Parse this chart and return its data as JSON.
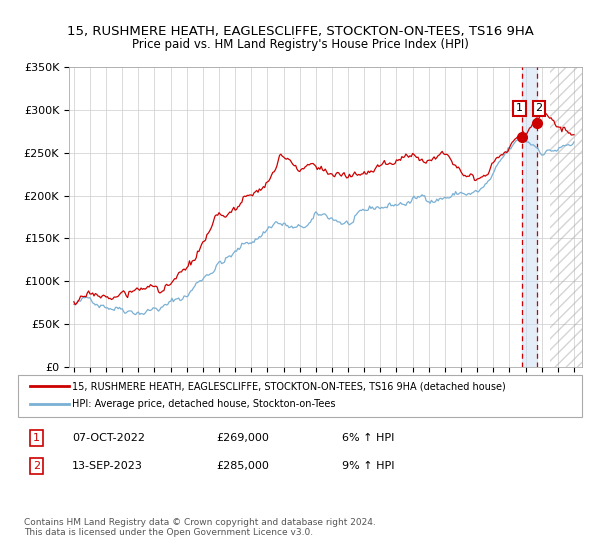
{
  "title": "15, RUSHMERE HEATH, EAGLESCLIFFE, STOCKTON-ON-TEES, TS16 9HA",
  "subtitle": "Price paid vs. HM Land Registry's House Price Index (HPI)",
  "legend_line1": "15, RUSHMERE HEATH, EAGLESCLIFFE, STOCKTON-ON-TEES, TS16 9HA (detached house)",
  "legend_line2": "HPI: Average price, detached house, Stockton-on-Tees",
  "red_color": "#cc0000",
  "blue_color": "#7ab0d4",
  "annotation1_date": "07-OCT-2022",
  "annotation1_price": "£269,000",
  "annotation1_hpi": "6% ↑ HPI",
  "annotation2_date": "13-SEP-2023",
  "annotation2_price": "£285,000",
  "annotation2_hpi": "9% ↑ HPI",
  "xmin": 1994.7,
  "xmax": 2026.5,
  "ymin": 0,
  "ymax": 350000,
  "yticks": [
    0,
    50000,
    100000,
    150000,
    200000,
    250000,
    300000,
    350000
  ],
  "ytick_labels": [
    "£0",
    "£50K",
    "£100K",
    "£150K",
    "£200K",
    "£250K",
    "£300K",
    "£350K"
  ],
  "xticks": [
    1995,
    1996,
    1997,
    1998,
    1999,
    2000,
    2001,
    2002,
    2003,
    2004,
    2005,
    2006,
    2007,
    2008,
    2009,
    2010,
    2011,
    2012,
    2013,
    2014,
    2015,
    2016,
    2017,
    2018,
    2019,
    2020,
    2021,
    2022,
    2023,
    2024,
    2025,
    2026
  ],
  "vline1_x": 2022.77,
  "vline2_x": 2023.71,
  "marker1_y": 269000,
  "marker2_y": 285000,
  "hatch_start": 2024.5,
  "footnote": "Contains HM Land Registry data © Crown copyright and database right 2024.\nThis data is licensed under the Open Government Licence v3.0."
}
